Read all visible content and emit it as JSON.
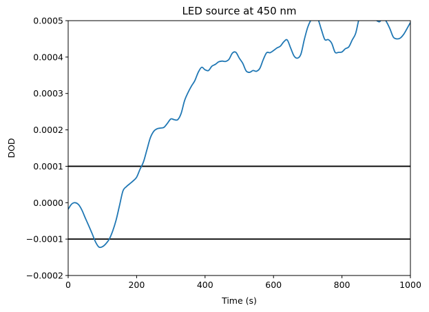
{
  "chart_data": {
    "type": "line",
    "title": "LED source at 450 nm",
    "xlabel": "Time (s)",
    "ylabel": "DOD",
    "xlim": [
      0,
      1000
    ],
    "ylim": [
      -0.0002,
      0.0005
    ],
    "x_ticks": [
      0,
      200,
      400,
      600,
      800,
      1000
    ],
    "x_tick_labels": [
      "0",
      "200",
      "400",
      "600",
      "800",
      "1000"
    ],
    "y_ticks": [
      -0.0002,
      -0.0001,
      0.0,
      0.0001,
      0.0002,
      0.0003,
      0.0004,
      0.0005
    ],
    "y_tick_labels": [
      "−0.0002",
      "−0.0001",
      "0.0000",
      "0.0001",
      "0.0002",
      "0.0003",
      "0.0004",
      "0.0005"
    ],
    "grid": false,
    "series_color": "#1f77b4",
    "hlines": [
      {
        "y": 0.0001,
        "color": "#000000"
      },
      {
        "y": -0.0001,
        "color": "#000000"
      }
    ],
    "series": [
      {
        "x": [
          0,
          10,
          20,
          30,
          40,
          50,
          60,
          70,
          80,
          90,
          100,
          110,
          120,
          130,
          140,
          150,
          160,
          170,
          180,
          190,
          200,
          210,
          220,
          230,
          240,
          250,
          260,
          270,
          280,
          290,
          300,
          310,
          320,
          330,
          340,
          350,
          360,
          370,
          380,
          390,
          400,
          410,
          420,
          430,
          440,
          450,
          460,
          470,
          480,
          490,
          500,
          510,
          520,
          530,
          540,
          550,
          560,
          570,
          580,
          590,
          600,
          610,
          620,
          630,
          640,
          650,
          660,
          670,
          680,
          690,
          700,
          710,
          720,
          730,
          740,
          750,
          760,
          770,
          780,
          790,
          800,
          810,
          820,
          830,
          840,
          850,
          860,
          870,
          880,
          890,
          900,
          910,
          920,
          930,
          940,
          950,
          960,
          970,
          980,
          990,
          1000
        ],
        "values": [
          -1.8e-05,
          -4e-06,
          0.0,
          -5e-06,
          -2e-05,
          -4.2e-05,
          -6.3e-05,
          -8.5e-05,
          -0.000108,
          -0.000122,
          -0.000121,
          -0.000113,
          -0.0001,
          -7.8e-05,
          -4.8e-05,
          -8e-06,
          3.2e-05,
          4.4e-05,
          5.2e-05,
          6e-05,
          7e-05,
          9.2e-05,
          0.000112,
          0.000145,
          0.000178,
          0.000196,
          0.000203,
          0.000205,
          0.000207,
          0.000218,
          0.00023,
          0.000228,
          0.000228,
          0.000245,
          0.00028,
          0.000302,
          0.00032,
          0.000335,
          0.000358,
          0.000372,
          0.000365,
          0.000363,
          0.000375,
          0.00038,
          0.000387,
          0.000389,
          0.000388,
          0.000394,
          0.000411,
          0.000413,
          0.000397,
          0.000383,
          0.000362,
          0.000358,
          0.000363,
          0.000361,
          0.000369,
          0.000393,
          0.000412,
          0.000412,
          0.000418,
          0.000425,
          0.00043,
          0.000442,
          0.000447,
          0.000425,
          0.000403,
          0.000397,
          0.000408,
          0.000448,
          0.000482,
          0.000503,
          0.000515,
          0.000504,
          0.000475,
          0.000448,
          0.000448,
          0.000438,
          0.000413,
          0.000413,
          0.000414,
          0.000423,
          0.000428,
          0.000447,
          0.000465,
          0.000505,
          0.000525,
          0.000536,
          0.000526,
          0.000508,
          0.000501,
          0.000497,
          0.000508,
          0.000497,
          0.000478,
          0.000455,
          0.00045,
          0.000452,
          0.000462,
          0.000478,
          0.000495
        ]
      }
    ]
  }
}
